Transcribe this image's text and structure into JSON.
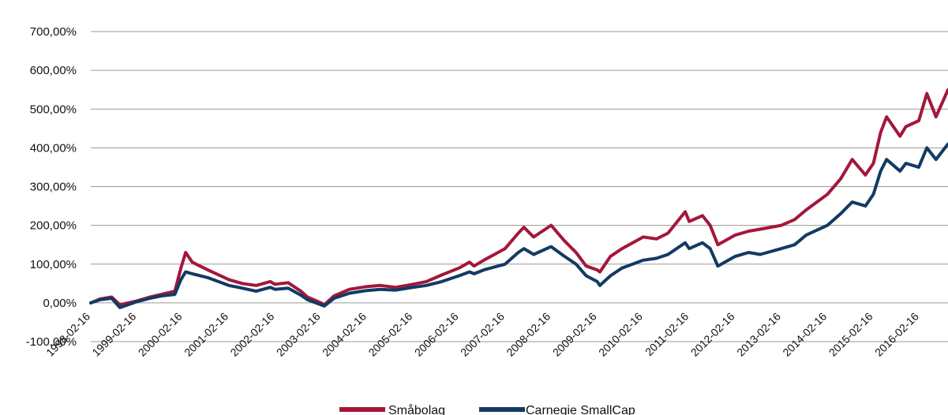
{
  "chart_data": {
    "type": "line",
    "title": "",
    "xlabel": "",
    "ylabel": "",
    "ylim": [
      -100,
      700
    ],
    "yticks": [
      "-100,00%",
      "0,00%",
      "100,00%",
      "200,00%",
      "300,00%",
      "400,00%",
      "500,00%",
      "600,00%",
      "700,00%"
    ],
    "x_range": [
      "1998-02-16",
      "2016-09-30"
    ],
    "xticks": [
      "1998-02-16",
      "1999-02-16",
      "2000-02-16",
      "2001-02-16",
      "2002-02-16",
      "2003-02-16",
      "2004-02-16",
      "2005-02-16",
      "2006-02-16",
      "2007-02-16",
      "2008-02-16",
      "2009-02-16",
      "2010-02-16",
      "2011-02-16",
      "2012-02-16",
      "2013-02-16",
      "2014-02-16",
      "2015-02-16",
      "2016-02-16"
    ],
    "grid": true,
    "legend": "bottom",
    "series": [
      {
        "name": "Småbolag",
        "color": "#a3173a",
        "x": [
          "1998-02-16",
          "1998-05-01",
          "1998-08-01",
          "1998-10-05",
          "1999-02-16",
          "1999-06-01",
          "1999-09-01",
          "1999-12-15",
          "2000-02-01",
          "2000-03-10",
          "2000-05-01",
          "2000-09-01",
          "2001-02-16",
          "2001-06-01",
          "2001-09-20",
          "2002-01-10",
          "2002-02-16",
          "2002-06-01",
          "2002-09-10",
          "2002-11-01",
          "2003-02-16",
          "2003-03-15",
          "2003-06-01",
          "2003-10-01",
          "2004-02-16",
          "2004-06-01",
          "2004-10-01",
          "2005-02-16",
          "2005-06-01",
          "2005-10-01",
          "2006-02-16",
          "2006-05-10",
          "2006-06-15",
          "2006-09-01",
          "2007-02-16",
          "2007-06-01",
          "2007-07-15",
          "2007-10-01",
          "2008-02-16",
          "2008-06-01",
          "2008-09-01",
          "2008-11-20",
          "2009-02-16",
          "2009-03-09",
          "2009-06-01",
          "2009-09-01",
          "2010-02-16",
          "2010-06-01",
          "2010-09-01",
          "2011-01-15",
          "2011-02-16",
          "2011-06-01",
          "2011-08-01",
          "2011-10-01",
          "2012-02-16",
          "2012-06-01",
          "2012-09-01",
          "2013-02-16",
          "2013-06-01",
          "2013-09-01",
          "2014-02-16",
          "2014-06-01",
          "2014-09-01",
          "2014-12-15",
          "2015-02-16",
          "2015-04-15",
          "2015-06-01",
          "2015-09-15",
          "2015-11-01",
          "2016-02-11",
          "2016-04-15",
          "2016-06-27",
          "2016-09-30"
        ],
        "values": [
          0,
          10,
          15,
          -5,
          5,
          15,
          22,
          30,
          90,
          130,
          105,
          85,
          60,
          50,
          45,
          55,
          48,
          52,
          30,
          15,
          0,
          -5,
          18,
          35,
          42,
          45,
          40,
          48,
          55,
          72,
          90,
          105,
          95,
          110,
          140,
          180,
          195,
          170,
          200,
          160,
          130,
          95,
          85,
          80,
          120,
          140,
          170,
          165,
          180,
          235,
          210,
          225,
          200,
          150,
          175,
          185,
          190,
          200,
          215,
          240,
          280,
          320,
          370,
          330,
          360,
          440,
          480,
          430,
          455,
          470,
          540,
          480,
          550
        ]
      },
      {
        "name": "Carnegie SmallCap",
        "color": "#123a63",
        "x": [
          "1998-02-16",
          "1998-05-01",
          "1998-08-01",
          "1998-10-05",
          "1999-02-16",
          "1999-06-01",
          "1999-09-01",
          "1999-12-15",
          "2000-02-01",
          "2000-03-10",
          "2000-05-01",
          "2000-09-01",
          "2001-02-16",
          "2001-06-01",
          "2001-09-20",
          "2002-01-10",
          "2002-02-16",
          "2002-06-01",
          "2002-09-10",
          "2002-11-01",
          "2003-02-16",
          "2003-03-15",
          "2003-06-01",
          "2003-10-01",
          "2004-02-16",
          "2004-06-01",
          "2004-10-01",
          "2005-02-16",
          "2005-06-01",
          "2005-10-01",
          "2006-02-16",
          "2006-05-10",
          "2006-06-15",
          "2006-09-01",
          "2007-02-16",
          "2007-06-01",
          "2007-07-15",
          "2007-10-01",
          "2008-02-16",
          "2008-06-01",
          "2008-09-01",
          "2008-11-20",
          "2009-02-16",
          "2009-03-09",
          "2009-06-01",
          "2009-09-01",
          "2010-02-16",
          "2010-06-01",
          "2010-09-01",
          "2011-01-15",
          "2011-02-16",
          "2011-06-01",
          "2011-08-01",
          "2011-10-01",
          "2012-02-16",
          "2012-06-01",
          "2012-09-01",
          "2013-02-16",
          "2013-06-01",
          "2013-09-01",
          "2014-02-16",
          "2014-06-01",
          "2014-09-01",
          "2014-12-15",
          "2015-02-16",
          "2015-04-15",
          "2015-06-01",
          "2015-09-15",
          "2015-11-01",
          "2016-02-11",
          "2016-04-15",
          "2016-06-27",
          "2016-09-30"
        ],
        "values": [
          0,
          8,
          12,
          -12,
          3,
          12,
          18,
          22,
          60,
          80,
          75,
          65,
          45,
          38,
          30,
          40,
          35,
          38,
          20,
          8,
          -5,
          -8,
          12,
          25,
          32,
          35,
          33,
          40,
          45,
          55,
          70,
          80,
          75,
          85,
          100,
          130,
          140,
          125,
          145,
          120,
          100,
          70,
          55,
          45,
          70,
          90,
          110,
          115,
          125,
          155,
          140,
          155,
          140,
          95,
          120,
          130,
          125,
          140,
          150,
          175,
          200,
          230,
          260,
          250,
          280,
          340,
          370,
          340,
          360,
          350,
          400,
          370,
          410
        ]
      }
    ]
  }
}
